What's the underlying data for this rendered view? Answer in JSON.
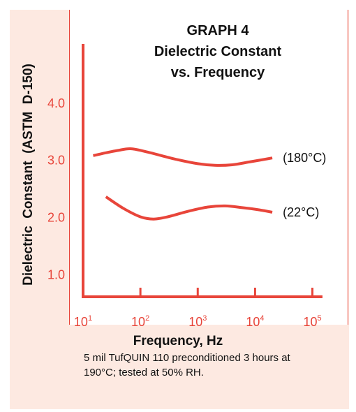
{
  "chart_data": {
    "type": "line",
    "title_lines": [
      "GRAPH 4",
      "Dielectric Constant",
      "vs. Frequency"
    ],
    "ylabel": "Dielectric  Constant  (ASTM  D-150)",
    "xlabel": "Frequency, Hz",
    "x_scale": "log",
    "xlim": [
      10,
      150000
    ],
    "ylim": [
      0.6,
      5.0
    ],
    "x_ticks": [
      {
        "value": 10,
        "base": "10",
        "exp": "1"
      },
      {
        "value": 100,
        "base": "10",
        "exp": "2"
      },
      {
        "value": 1000,
        "base": "10",
        "exp": "3"
      },
      {
        "value": 10000,
        "base": "10",
        "exp": "4"
      },
      {
        "value": 100000,
        "base": "10",
        "exp": "5"
      }
    ],
    "y_ticks": [
      {
        "value": 1.0,
        "label": "1.0"
      },
      {
        "value": 2.0,
        "label": "2.0"
      },
      {
        "value": 3.0,
        "label": "3.0"
      },
      {
        "value": 4.0,
        "label": "4.0"
      }
    ],
    "series": [
      {
        "name": "(180°C)",
        "x": [
          15,
          25,
          40,
          70,
          150,
          400,
          1000,
          2000,
          4000,
          8000,
          20000
        ],
        "y": [
          3.07,
          3.12,
          3.16,
          3.19,
          3.12,
          3.01,
          2.93,
          2.9,
          2.91,
          2.96,
          3.03
        ]
      },
      {
        "name": "(22°C)",
        "x": [
          25,
          50,
          100,
          170,
          300,
          700,
          1500,
          3000,
          6000,
          12000,
          20000
        ],
        "y": [
          2.35,
          2.15,
          2.0,
          1.96,
          2.0,
          2.1,
          2.17,
          2.19,
          2.16,
          2.12,
          2.08
        ]
      }
    ],
    "grid": false,
    "color": "#e8453a"
  },
  "footnote_lines": [
    "5 mil TufQUIN 110 preconditioned 3 hours at",
    "190°C; tested at 50% RH."
  ]
}
